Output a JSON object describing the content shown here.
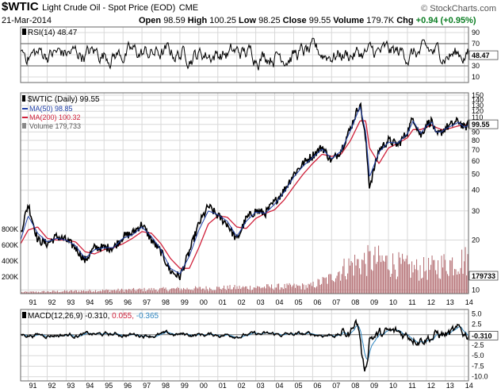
{
  "header": {
    "symbol": "$WTIC",
    "description": "Light Crude Oil - Spot Price (EOD)",
    "exchange": "CME",
    "date": "21-Mar-2014",
    "credit": "© StockCharts.com",
    "open_label": "Open",
    "open": "98.59",
    "high_label": "High",
    "high": "100.25",
    "low_label": "Low",
    "low": "98.25",
    "close_label": "Close",
    "close": "99.55",
    "volume_label": "Volume",
    "volume": "179.7K",
    "chg_label": "Chg",
    "chg": "+0.94 (+0.95%)"
  },
  "chart_data": [
    {
      "type": "line",
      "name": "RSI panel",
      "legend": "RSI(14) 48.47",
      "last_value_label": "48.47",
      "ylim": [
        0,
        100
      ],
      "y_ticks": [
        10,
        30,
        50,
        70,
        90
      ],
      "reference_lines": [
        30,
        70
      ]
    },
    {
      "type": "line",
      "name": "Price panel (log scale)",
      "title": "$WTIC (Daily) 99.55",
      "x": [
        1990.6,
        1991.0,
        1991.5,
        1992.0,
        1992.5,
        1993.0,
        1993.5,
        1994.0,
        1994.5,
        1995.0,
        1995.5,
        1996.0,
        1996.5,
        1997.0,
        1997.5,
        1998.0,
        1998.5,
        1999.0,
        1999.5,
        2000.0,
        2000.5,
        2001.0,
        2001.5,
        2002.0,
        2002.5,
        2003.0,
        2003.5,
        2004.0,
        2004.5,
        2005.0,
        2005.5,
        2006.0,
        2006.5,
        2007.0,
        2007.5,
        2008.0,
        2008.5,
        2008.8,
        2009.0,
        2009.5,
        2010.0,
        2010.5,
        2011.0,
        2011.3,
        2011.7,
        2012.0,
        2012.3,
        2012.5,
        2012.8,
        2013.0,
        2013.7,
        2014.0,
        2014.22
      ],
      "series": [
        {
          "name": "$WTIC (Daily)",
          "last": "99.55",
          "values": [
            22,
            33,
            20,
            19,
            21,
            20,
            18,
            15,
            18,
            18,
            18,
            21,
            22,
            25,
            20,
            17,
            13,
            12,
            17,
            25,
            32,
            28,
            25,
            20,
            27,
            30,
            29,
            34,
            40,
            50,
            58,
            65,
            73,
            60,
            70,
            95,
            135,
            80,
            42,
            70,
            80,
            75,
            90,
            110,
            85,
            100,
            105,
            85,
            90,
            95,
            105,
            95,
            99.55
          ]
        },
        {
          "name": "MA(50)",
          "last": "98.85",
          "values": [
            20,
            28,
            22,
            19.5,
            20.5,
            20,
            18.5,
            15.5,
            17.5,
            18,
            18,
            20.5,
            21.5,
            24,
            21,
            17.5,
            13.5,
            12.5,
            16,
            23,
            30,
            28.5,
            26,
            21,
            26,
            29.5,
            29,
            33,
            39,
            48,
            56,
            63,
            71,
            62,
            69,
            92,
            128,
            90,
            48,
            68,
            78,
            77,
            88,
            105,
            88,
            98,
            103,
            90,
            90,
            94,
            103,
            96,
            98.85
          ]
        },
        {
          "name": "MA(200)",
          "last": "100.32",
          "values": [
            19,
            23,
            24,
            20.5,
            20,
            20,
            19.5,
            17,
            16.5,
            17.5,
            18,
            19,
            20.5,
            22.5,
            22,
            19,
            15.5,
            13.5,
            13.5,
            18,
            25,
            28,
            27.5,
            24,
            23.5,
            27,
            29,
            30.5,
            35,
            42,
            50,
            58,
            66,
            64,
            66,
            80,
            105,
            105,
            72,
            58,
            72,
            77,
            83,
            93,
            93,
            96,
            99,
            96,
            93,
            93,
            98,
            99,
            100.32
          ]
        }
      ],
      "volume_legend": "Volume 179,733",
      "volume_last_label": "179733",
      "y_ticks": [
        10,
        20,
        30,
        40,
        50,
        60,
        70,
        80,
        90,
        100,
        110,
        120,
        130,
        140,
        150
      ],
      "volume_axis_labels": [
        "200K",
        "400K",
        "600K",
        "800K"
      ],
      "x_labels": [
        "91",
        "92",
        "93",
        "94",
        "95",
        "96",
        "97",
        "98",
        "99",
        "00",
        "01",
        "02",
        "03",
        "04",
        "05",
        "06",
        "07",
        "08",
        "09",
        "10",
        "11",
        "12",
        "13",
        "14"
      ]
    },
    {
      "type": "line",
      "name": "MACD panel",
      "legend_macd": "MACD(12,26,9)",
      "legend_values": [
        "-0.310",
        "0.055",
        "-0.365"
      ],
      "last_value_label": "-0.310",
      "y_ticks": [
        5.0,
        2.5,
        0.0,
        -2.5,
        -5.0,
        -7.5,
        -10.0
      ],
      "ylim": [
        -11,
        6
      ]
    }
  ],
  "colors": {
    "price": "#000000",
    "ma50": "#1f3fa8",
    "ma200": "#d0203a",
    "volume": "#b9777c",
    "macd_signal": "#d0203a",
    "macd_hist": "#2e86c1",
    "grid": "#d8d8d8"
  }
}
